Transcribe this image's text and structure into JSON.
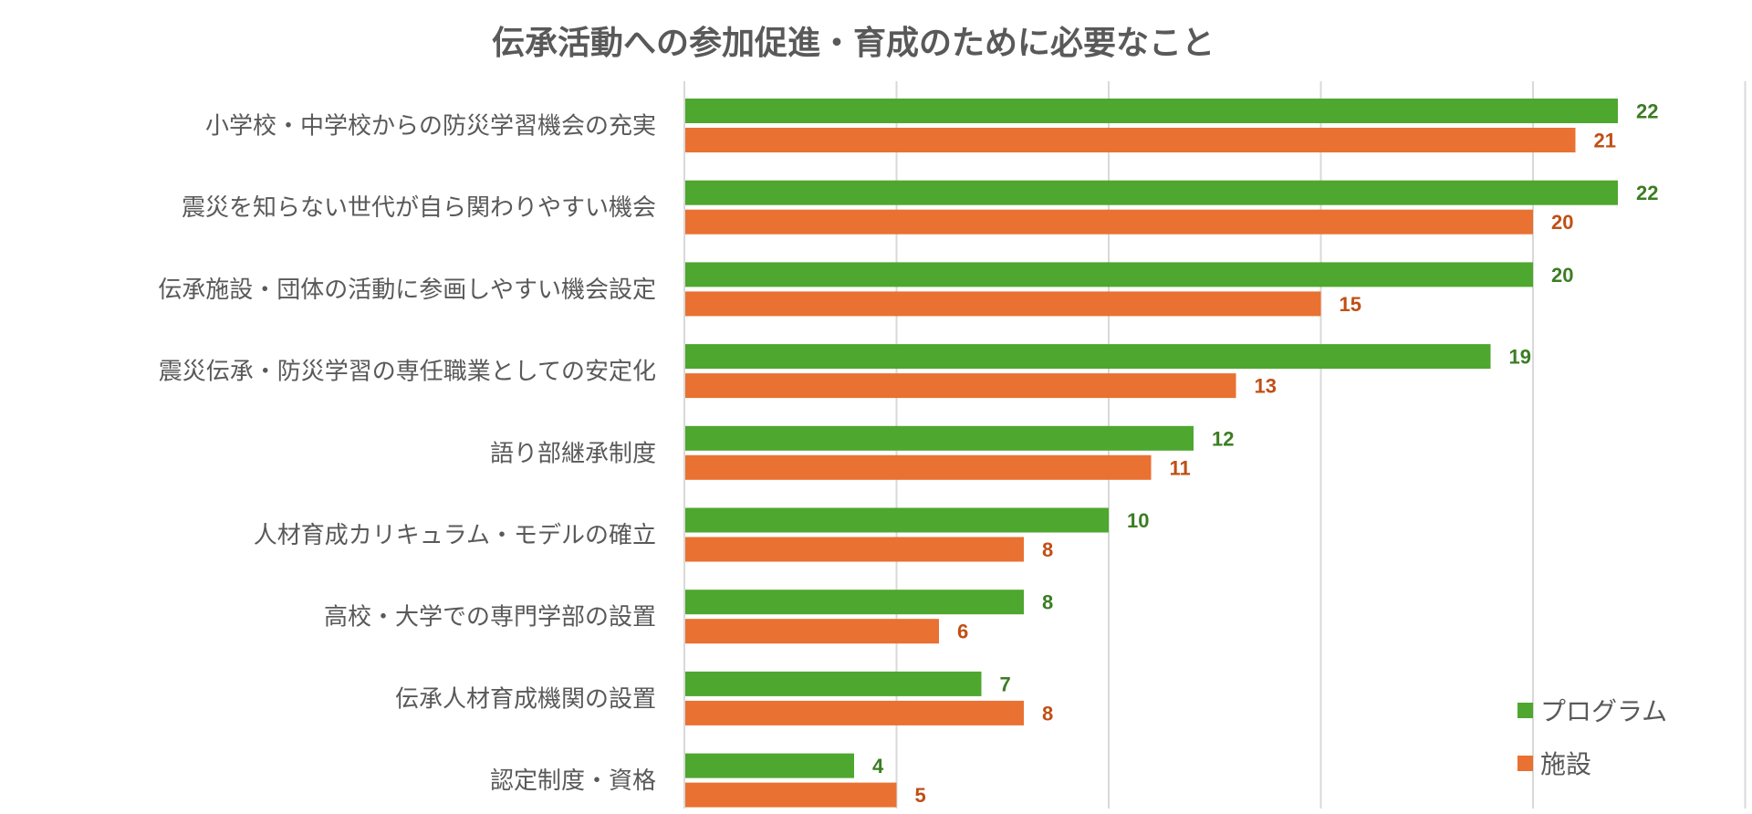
{
  "chart_data": {
    "type": "bar",
    "orientation": "horizontal",
    "title": "伝承活動への参加促進・育成のために必要なこと",
    "categories": [
      "小学校・中学校からの防災学習機会の充実",
      "震災を知らない世代が自ら関わりやすい機会",
      "伝承施設・団体の活動に参画しやすい機会設定",
      "震災伝承・防災学習の専任職業としての安定化",
      "語り部継承制度",
      "人材育成カリキュラム・モデルの確立",
      "高校・大学での専門学部の設置",
      "伝承人材育成機関の設置",
      "認定制度・資格"
    ],
    "series": [
      {
        "name": "プログラム",
        "color": "#4ea72e",
        "label_color": "#3b7d23",
        "values": [
          22,
          22,
          20,
          19,
          12,
          10,
          8,
          7,
          4
        ]
      },
      {
        "name": "施設",
        "color": "#e97132",
        "label_color": "#c04f15",
        "values": [
          21,
          20,
          15,
          13,
          11,
          8,
          6,
          8,
          5
        ]
      }
    ],
    "xlim": [
      0,
      25
    ],
    "grid": true,
    "gridline_step": 5,
    "tick_labels_shown": false,
    "legend_position": "bottom-right"
  }
}
